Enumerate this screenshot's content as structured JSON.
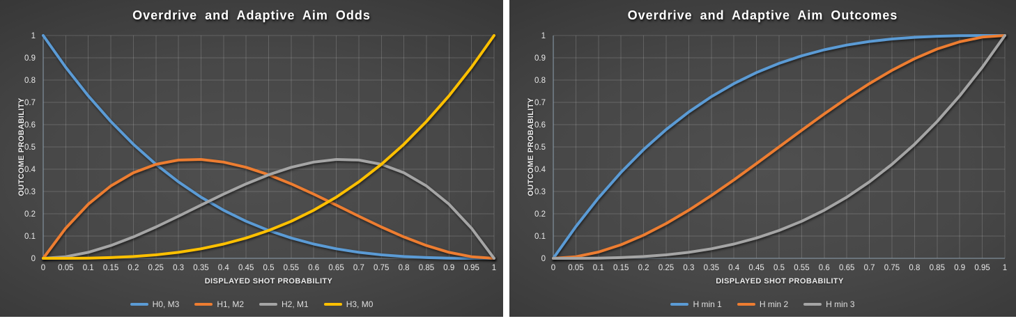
{
  "page": {
    "background": "#ffffff",
    "chart_background_center": "#4f4f4f",
    "chart_background_edge": "#272727"
  },
  "chart_data": [
    {
      "type": "line",
      "title": "Overdrive and Adaptive Aim Odds",
      "xlabel": "DISPLAYED SHOT PROBABILITY",
      "ylabel": "OUTCOME PROBABILITY",
      "xlim": [
        0,
        1
      ],
      "ylim": [
        0,
        1
      ],
      "grid": true,
      "legend_position": "bottom",
      "x_ticks": [
        0,
        0.05,
        0.1,
        0.15,
        0.2,
        0.25,
        0.3,
        0.35,
        0.4,
        0.45,
        0.5,
        0.55,
        0.6,
        0.65,
        0.7,
        0.75,
        0.8,
        0.85,
        0.9,
        0.95,
        1
      ],
      "y_ticks": [
        0,
        0.1,
        0.2,
        0.3,
        0.4,
        0.5,
        0.6,
        0.7,
        0.8,
        0.9,
        1
      ],
      "x": [
        0,
        0.05,
        0.1,
        0.15,
        0.2,
        0.25,
        0.3,
        0.35,
        0.4,
        0.45,
        0.5,
        0.55,
        0.6,
        0.65,
        0.7,
        0.75,
        0.8,
        0.85,
        0.9,
        0.95,
        1
      ],
      "series": [
        {
          "name": "H0, M3",
          "color": "#5B9BD5",
          "values": [
            1,
            0.8574,
            0.729,
            0.6141,
            0.512,
            0.4219,
            0.343,
            0.2746,
            0.216,
            0.1664,
            0.125,
            0.0911,
            0.064,
            0.0429,
            0.027,
            0.0156,
            0.008,
            0.0034,
            0.001,
            0.0001,
            0
          ]
        },
        {
          "name": "H1, M2",
          "color": "#ED7D31",
          "values": [
            0,
            0.1354,
            0.243,
            0.3251,
            0.384,
            0.4219,
            0.441,
            0.4436,
            0.432,
            0.4084,
            0.375,
            0.3341,
            0.288,
            0.2389,
            0.189,
            0.1406,
            0.096,
            0.0574,
            0.027,
            0.0071,
            0
          ]
        },
        {
          "name": "H2, M1",
          "color": "#A5A5A5",
          "values": [
            0,
            0.0071,
            0.027,
            0.0574,
            0.096,
            0.1406,
            0.189,
            0.2389,
            0.288,
            0.3341,
            0.375,
            0.4084,
            0.432,
            0.4436,
            0.441,
            0.4219,
            0.384,
            0.3251,
            0.243,
            0.1354,
            0
          ]
        },
        {
          "name": "H3, M0",
          "color": "#FFC000",
          "values": [
            0,
            0.0001,
            0.001,
            0.0034,
            0.008,
            0.0156,
            0.027,
            0.0429,
            0.064,
            0.0911,
            0.125,
            0.1664,
            0.216,
            0.2746,
            0.343,
            0.4219,
            0.512,
            0.6141,
            0.729,
            0.8574,
            1
          ]
        }
      ]
    },
    {
      "type": "line",
      "title": "Overdrive and Adaptive Aim Outcomes",
      "xlabel": "DISPLAYED SHOT PROBABILITY",
      "ylabel": "OUTCOME PROBABILITY",
      "xlim": [
        0,
        1
      ],
      "ylim": [
        0,
        1
      ],
      "grid": true,
      "legend_position": "bottom",
      "x_ticks": [
        0,
        0.05,
        0.1,
        0.15,
        0.2,
        0.25,
        0.3,
        0.35,
        0.4,
        0.45,
        0.5,
        0.55,
        0.6,
        0.65,
        0.7,
        0.75,
        0.8,
        0.85,
        0.9,
        0.95,
        1
      ],
      "y_ticks": [
        0,
        0.1,
        0.2,
        0.3,
        0.4,
        0.5,
        0.6,
        0.7,
        0.8,
        0.9,
        1
      ],
      "x": [
        0,
        0.05,
        0.1,
        0.15,
        0.2,
        0.25,
        0.3,
        0.35,
        0.4,
        0.45,
        0.5,
        0.55,
        0.6,
        0.65,
        0.7,
        0.75,
        0.8,
        0.85,
        0.9,
        0.95,
        1
      ],
      "series": [
        {
          "name": "H min 1",
          "color": "#5B9BD5",
          "values": [
            0,
            0.1426,
            0.271,
            0.3859,
            0.488,
            0.5781,
            0.657,
            0.7254,
            0.784,
            0.8336,
            0.875,
            0.9089,
            0.936,
            0.9571,
            0.973,
            0.9844,
            0.992,
            0.9966,
            0.999,
            0.9999,
            1
          ]
        },
        {
          "name": "H min 2",
          "color": "#ED7D31",
          "values": [
            0,
            0.0073,
            0.028,
            0.0608,
            0.104,
            0.1563,
            0.216,
            0.2818,
            0.352,
            0.4253,
            0.5,
            0.5748,
            0.648,
            0.7183,
            0.784,
            0.8438,
            0.896,
            0.9393,
            0.972,
            0.9928,
            1
          ]
        },
        {
          "name": "H min 3",
          "color": "#A5A5A5",
          "values": [
            0,
            0.0001,
            0.001,
            0.0034,
            0.008,
            0.0156,
            0.027,
            0.0429,
            0.064,
            0.0911,
            0.125,
            0.1664,
            0.216,
            0.2746,
            0.343,
            0.4219,
            0.512,
            0.6141,
            0.729,
            0.8574,
            1
          ]
        }
      ]
    }
  ]
}
